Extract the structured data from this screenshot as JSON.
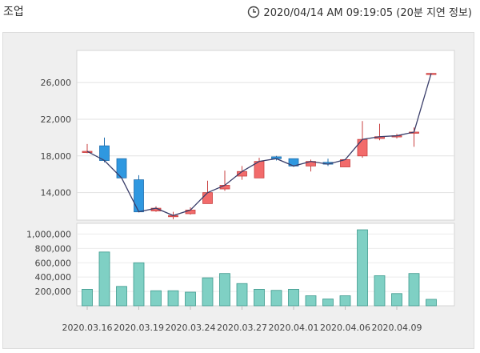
{
  "header": {
    "title": "조업",
    "timestamp": "2020/04/14 AM 09:19:05 (20분 지연 정보)",
    "clock_icon": "clock-icon"
  },
  "colors": {
    "up": "#f26b6b",
    "up_border": "#c94040",
    "down": "#2f98e0",
    "down_border": "#1f6fae",
    "volume": "#7fd0c4",
    "volume_border": "#3f9a8e",
    "line": "#3b3f6b"
  },
  "chart_data": [
    {
      "type": "candlestick",
      "title": "",
      "ylim": [
        11000,
        29500
      ],
      "y_ticks": [
        14000,
        18000,
        22000,
        26000
      ],
      "y_tick_labels": [
        "14,000",
        "18,000",
        "22,000",
        "26,000"
      ],
      "grid": true,
      "candles": [
        {
          "o": 18500,
          "h": 19300,
          "l": 18300,
          "c": 18500
        },
        {
          "o": 19100,
          "h": 20000,
          "l": 17300,
          "c": 17500
        },
        {
          "o": 17700,
          "h": 17700,
          "l": 15600,
          "c": 15600
        },
        {
          "o": 15400,
          "h": 15900,
          "l": 11900,
          "c": 11900
        },
        {
          "o": 12000,
          "h": 12500,
          "l": 11900,
          "c": 12300
        },
        {
          "o": 11500,
          "h": 11900,
          "l": 11100,
          "c": 11500
        },
        {
          "o": 11700,
          "h": 12400,
          "l": 11600,
          "c": 12100
        },
        {
          "o": 12800,
          "h": 15300,
          "l": 12800,
          "c": 14000
        },
        {
          "o": 14400,
          "h": 16400,
          "l": 14200,
          "c": 14800
        },
        {
          "o": 15800,
          "h": 16900,
          "l": 15400,
          "c": 16300
        },
        {
          "o": 15600,
          "h": 17800,
          "l": 15600,
          "c": 17400
        },
        {
          "o": 17900,
          "h": 18000,
          "l": 17500,
          "c": 17700
        },
        {
          "o": 17700,
          "h": 17700,
          "l": 16800,
          "c": 16900
        },
        {
          "o": 16900,
          "h": 17600,
          "l": 16300,
          "c": 17400
        },
        {
          "o": 17300,
          "h": 17700,
          "l": 16900,
          "c": 17100
        },
        {
          "o": 16800,
          "h": 17600,
          "l": 16800,
          "c": 17600
        },
        {
          "o": 18000,
          "h": 21800,
          "l": 17800,
          "c": 19800
        },
        {
          "o": 19900,
          "h": 21500,
          "l": 19700,
          "c": 20100
        },
        {
          "o": 20100,
          "h": 20400,
          "l": 19900,
          "c": 20200
        },
        {
          "o": 20500,
          "h": 21100,
          "l": 19000,
          "c": 20600
        },
        {
          "o": 27000,
          "h": 27000,
          "l": 27000,
          "c": 27000
        }
      ],
      "close_line": [
        18500,
        17500,
        15600,
        11900,
        12300,
        11500,
        12100,
        14000,
        14800,
        16300,
        17400,
        17700,
        16900,
        17400,
        17100,
        17600,
        19800,
        20100,
        20200,
        20600,
        27000
      ]
    },
    {
      "type": "bar",
      "ylim": [
        0,
        1150000
      ],
      "y_ticks": [
        200000,
        400000,
        600000,
        800000,
        1000000
      ],
      "y_tick_labels": [
        "200,000",
        "400,000",
        "600,000",
        "800,000",
        "1,000,000"
      ],
      "values": [
        230000,
        750000,
        270000,
        600000,
        210000,
        210000,
        190000,
        390000,
        450000,
        310000,
        230000,
        215000,
        230000,
        140000,
        95000,
        140000,
        1060000,
        420000,
        170000,
        450000,
        90000
      ],
      "x_tick_labels": [
        "2020.03.16",
        "2020.03.19",
        "2020.03.24",
        "2020.03.27",
        "2020.04.01",
        "2020.04.06",
        "2020.04.09"
      ]
    }
  ]
}
